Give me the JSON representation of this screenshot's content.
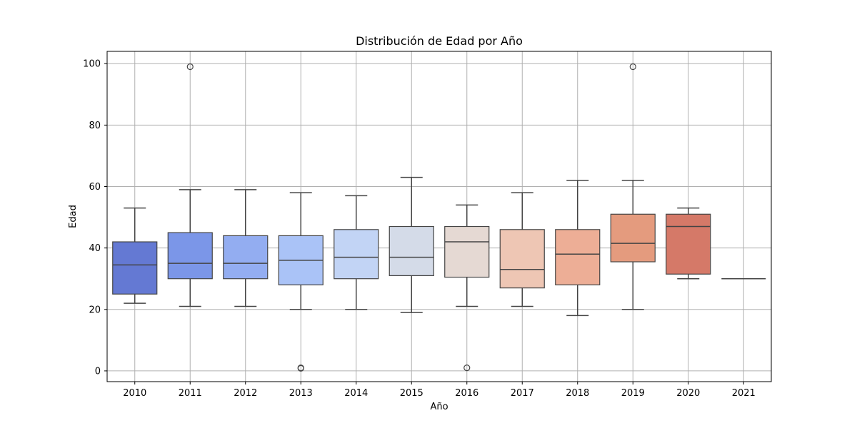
{
  "chart_data": {
    "type": "box",
    "title": "Distribución de Edad por Año",
    "xlabel": "Año",
    "ylabel": "Edad",
    "ylim": [
      -3.5,
      104
    ],
    "yticks": [
      0,
      20,
      40,
      60,
      80,
      100
    ],
    "grid": true,
    "categories": [
      "2010",
      "2011",
      "2012",
      "2013",
      "2014",
      "2015",
      "2016",
      "2017",
      "2018",
      "2019",
      "2020",
      "2021"
    ],
    "boxes": [
      {
        "year": "2010",
        "whisker_low": 22,
        "q1": 25,
        "median": 34.5,
        "q3": 42,
        "whisker_high": 53,
        "outliers": [],
        "color": "#6479d3"
      },
      {
        "year": "2011",
        "whisker_low": 21,
        "q1": 30,
        "median": 35,
        "q3": 45,
        "whisker_high": 59,
        "outliers": [
          99
        ],
        "color": "#7b96e8"
      },
      {
        "year": "2012",
        "whisker_low": 21,
        "q1": 30,
        "median": 35,
        "q3": 44,
        "whisker_high": 59,
        "outliers": [],
        "color": "#93adf1"
      },
      {
        "year": "2013",
        "whisker_low": 20,
        "q1": 28,
        "median": 36,
        "q3": 44,
        "whisker_high": 58,
        "outliers": [
          1,
          1
        ],
        "color": "#aac3f7"
      },
      {
        "year": "2014",
        "whisker_low": 20,
        "q1": 30,
        "median": 37,
        "q3": 46,
        "whisker_high": 57,
        "outliers": [],
        "color": "#c2d4f5"
      },
      {
        "year": "2015",
        "whisker_low": 19,
        "q1": 31,
        "median": 37,
        "q3": 47,
        "whisker_high": 63,
        "outliers": [],
        "color": "#d4dbe8"
      },
      {
        "year": "2016",
        "whisker_low": 21,
        "q1": 30.5,
        "median": 42,
        "q3": 47,
        "whisker_high": 54,
        "outliers": [
          1
        ],
        "color": "#e5d9d3"
      },
      {
        "year": "2017",
        "whisker_low": 21,
        "q1": 27,
        "median": 33,
        "q3": 46,
        "whisker_high": 58,
        "outliers": [],
        "color": "#eec6b4"
      },
      {
        "year": "2018",
        "whisker_low": 18,
        "q1": 28,
        "median": 38,
        "q3": 46,
        "whisker_high": 62,
        "outliers": [],
        "color": "#edae96"
      },
      {
        "year": "2019",
        "whisker_low": 20,
        "q1": 35.5,
        "median": 41.5,
        "q3": 51,
        "whisker_high": 62,
        "outliers": [
          99
        ],
        "color": "#e49b7e"
      },
      {
        "year": "2020",
        "whisker_low": 30,
        "q1": 31.5,
        "median": 47,
        "q3": 51,
        "whisker_high": 53,
        "outliers": [],
        "color": "#d57968"
      },
      {
        "year": "2021",
        "whisker_low": 30,
        "q1": 30,
        "median": 30,
        "q3": 30,
        "whisker_high": 30,
        "outliers": [],
        "color": "#c0564e"
      }
    ]
  }
}
